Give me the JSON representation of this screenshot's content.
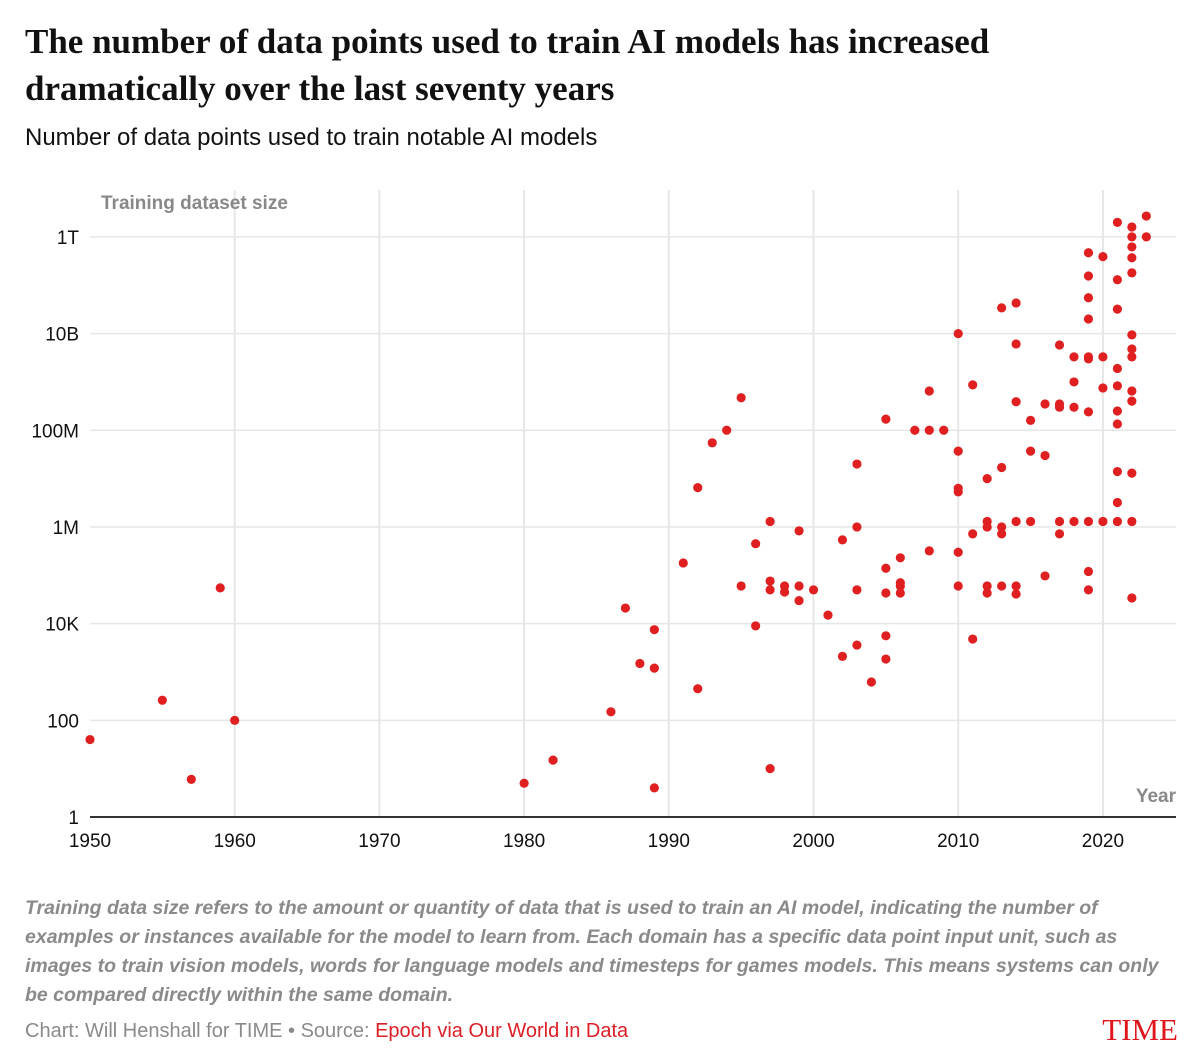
{
  "title": "The number of data points used to train AI models has increased dramatically over the last seventy years",
  "subtitle": "Number of data points used to train notable AI models",
  "notes": "Training data size refers to the amount or quantity of data that is used to train an AI model, indicating the number of examples or instances available for the model to learn from. Each domain has a specific data point input unit, such as images to train vision models, words for language models and timesteps for games models. This means systems can only be compared directly within the same domain.",
  "source_prefix": "Chart: Will Henshall for TIME • Source: ",
  "source_link": "Epoch via Our World in Data",
  "logo": "TIME",
  "colors": {
    "dot": "#e02020",
    "grid": "#e6e6e6",
    "axis": "#333333"
  },
  "chart_data": {
    "type": "scatter",
    "title": "Number of data points used to train notable AI models",
    "xlabel": "Year",
    "ylabel": "Training dataset size",
    "xlim": [
      1950,
      2025
    ],
    "ylim": [
      1,
      10000000000000.0
    ],
    "yscale": "log",
    "grid": true,
    "x_ticks": [
      1950,
      1960,
      1970,
      1980,
      1990,
      2000,
      2010,
      2020
    ],
    "x_tick_labels": [
      "1950",
      "1960",
      "1970",
      "1980",
      "1990",
      "2000",
      "2010",
      "2020"
    ],
    "y_ticks": [
      1,
      100,
      10000,
      1000000,
      100000000,
      10000000000,
      1000000000000
    ],
    "y_tick_labels": [
      "1",
      "100",
      "10K",
      "1M",
      "100M",
      "10B",
      "1T"
    ],
    "points": [
      [
        1950,
        40
      ],
      [
        1955,
        260
      ],
      [
        1957,
        6
      ],
      [
        1959,
        55000
      ],
      [
        1960,
        100
      ],
      [
        1980,
        5
      ],
      [
        1982,
        15
      ],
      [
        1986,
        150
      ],
      [
        1987,
        21000
      ],
      [
        1988,
        1500
      ],
      [
        1989,
        7500
      ],
      [
        1989,
        1200
      ],
      [
        1989,
        4
      ],
      [
        1991,
        180000
      ],
      [
        1992,
        450
      ],
      [
        1992,
        6500000
      ],
      [
        1993,
        55000000
      ],
      [
        1994,
        100000000
      ],
      [
        1995,
        470000000
      ],
      [
        1995,
        60000
      ],
      [
        1996,
        450000
      ],
      [
        1996,
        9000
      ],
      [
        1997,
        1300000
      ],
      [
        1997,
        76000
      ],
      [
        1997,
        50000
      ],
      [
        1997,
        10
      ],
      [
        1998,
        60000
      ],
      [
        1998,
        45000
      ],
      [
        1999,
        830000
      ],
      [
        1999,
        60000
      ],
      [
        1999,
        30000
      ],
      [
        2000,
        50000
      ],
      [
        2001,
        15000
      ],
      [
        2002,
        540000
      ],
      [
        2002,
        2100
      ],
      [
        2003,
        20000000
      ],
      [
        2003,
        1000000
      ],
      [
        2003,
        50000
      ],
      [
        2003,
        3600
      ],
      [
        2004,
        620
      ],
      [
        2005,
        170000000
      ],
      [
        2005,
        140000
      ],
      [
        2005,
        43000
      ],
      [
        2005,
        5600
      ],
      [
        2005,
        1850
      ],
      [
        2006,
        230000
      ],
      [
        2006,
        70000
      ],
      [
        2006,
        60000
      ],
      [
        2006,
        43000
      ],
      [
        2007,
        100000000
      ],
      [
        2008,
        320000
      ],
      [
        2008,
        650000000
      ],
      [
        2008,
        100000000
      ],
      [
        2009,
        100000000
      ],
      [
        2010,
        10000000000
      ],
      [
        2010,
        37000000
      ],
      [
        2010,
        6300000
      ],
      [
        2010,
        5300000
      ],
      [
        2010,
        300000
      ],
      [
        2010,
        60000
      ],
      [
        2011,
        870000000
      ],
      [
        2011,
        720000
      ],
      [
        2011,
        4800
      ],
      [
        2012,
        10000000
      ],
      [
        2012,
        1300000
      ],
      [
        2012,
        1000000
      ],
      [
        2012,
        60000
      ],
      [
        2012,
        43000
      ],
      [
        2013,
        34000000000
      ],
      [
        2013,
        17000000
      ],
      [
        2013,
        1000000
      ],
      [
        2013,
        720000
      ],
      [
        2013,
        60000
      ],
      [
        2014,
        43000000000
      ],
      [
        2014,
        6100000000
      ],
      [
        2014,
        390000000
      ],
      [
        2014,
        1300000
      ],
      [
        2014,
        60000
      ],
      [
        2014,
        41000
      ],
      [
        2015,
        160000000
      ],
      [
        2015,
        37000000
      ],
      [
        2015,
        1300000
      ],
      [
        2016,
        30000000
      ],
      [
        2016,
        350000000
      ],
      [
        2016,
        97000
      ],
      [
        2017,
        5800000000
      ],
      [
        2017,
        350000000
      ],
      [
        2017,
        300000000
      ],
      [
        2017,
        1300000
      ],
      [
        2017,
        720000
      ],
      [
        2018,
        3300000000
      ],
      [
        2018,
        1000000000
      ],
      [
        2018,
        300000000
      ],
      [
        2018,
        1300000
      ],
      [
        2019,
        470000000000
      ],
      [
        2019,
        155000000000
      ],
      [
        2019,
        55000000000
      ],
      [
        2019,
        20000000000
      ],
      [
        2019,
        3300000000
      ],
      [
        2019,
        3000000000
      ],
      [
        2019,
        240000000
      ],
      [
        2019,
        1300000
      ],
      [
        2019,
        120000
      ],
      [
        2019,
        50000
      ],
      [
        2020,
        390000000000
      ],
      [
        2020,
        3300000000
      ],
      [
        2020,
        750000000
      ],
      [
        2020,
        1300000
      ],
      [
        2021,
        2000000000000
      ],
      [
        2021,
        130000000000
      ],
      [
        2021,
        32000000000
      ],
      [
        2021,
        1900000000
      ],
      [
        2021,
        830000000
      ],
      [
        2021,
        250000000
      ],
      [
        2021,
        135000000
      ],
      [
        2021,
        14000000
      ],
      [
        2021,
        3200000
      ],
      [
        2021,
        1300000
      ],
      [
        2022,
        1600000000000
      ],
      [
        2022,
        1000000000000
      ],
      [
        2022,
        620000000000
      ],
      [
        2022,
        370000000000
      ],
      [
        2022,
        180000000000
      ],
      [
        2022,
        9400000000
      ],
      [
        2022,
        4800000000
      ],
      [
        2022,
        3300000000
      ],
      [
        2022,
        650000000
      ],
      [
        2022,
        400000000
      ],
      [
        2022,
        13000000
      ],
      [
        2022,
        1300000
      ],
      [
        2022,
        34000
      ],
      [
        2023,
        2700000000000
      ],
      [
        2023,
        1000000000000
      ]
    ]
  }
}
